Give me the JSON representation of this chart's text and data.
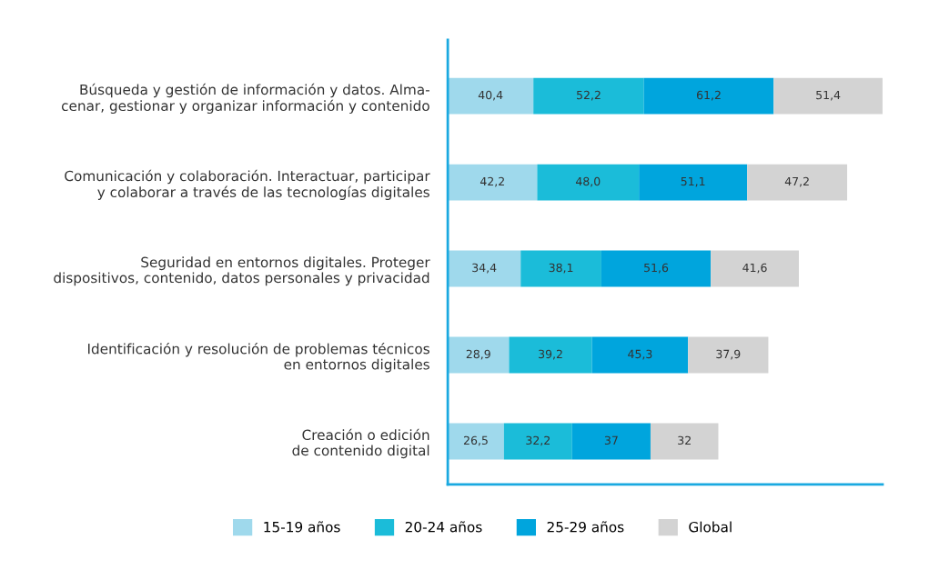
{
  "chart_data": {
    "type": "bar",
    "orientation": "horizontal",
    "stacked": true,
    "legend": "bottom",
    "grid": false,
    "tick_labels": "y",
    "categories": [
      "Búsqueda y gestión de información y datos. Alma-\ncenar, gestionar y organizar información y contenido",
      "Comunicación y colaboración. Interactuar, participar\ny colaborar a través de las tecnologías digitales",
      "Seguridad en entornos digitales. Proteger\ndispositivos, contenido, datos personales y privacidad",
      "Identificación y resolución de problemas técnicos\nen entornos digitales",
      "Creación o edición\nde contenido digital"
    ],
    "series": [
      {
        "name": "15-19 años",
        "color": "#9fd9ec",
        "values": [
          40.4,
          42.2,
          34.4,
          28.9,
          26.5
        ],
        "value_labels": [
          "40,4",
          "42,2",
          "34,4",
          "28,9",
          "26,5"
        ]
      },
      {
        "name": "20-24 años",
        "color": "#1bbcd9",
        "values": [
          52.2,
          48.0,
          38.1,
          39.2,
          32.2
        ],
        "value_labels": [
          "52,2",
          "48,0",
          "38,1",
          "39,2",
          "32,2"
        ]
      },
      {
        "name": "25-29 años",
        "color": "#00a5dd",
        "values": [
          61.2,
          51.1,
          51.6,
          45.3,
          37
        ],
        "value_labels": [
          "61,2",
          "51,1",
          "51,6",
          "45,3",
          "37"
        ]
      },
      {
        "name": "Global",
        "color": "#d3d3d3",
        "values": [
          51.4,
          47.2,
          41.6,
          37.9,
          32
        ],
        "value_labels": [
          "51,4",
          "47,2",
          "41,6",
          "37,9",
          "32"
        ]
      }
    ]
  }
}
